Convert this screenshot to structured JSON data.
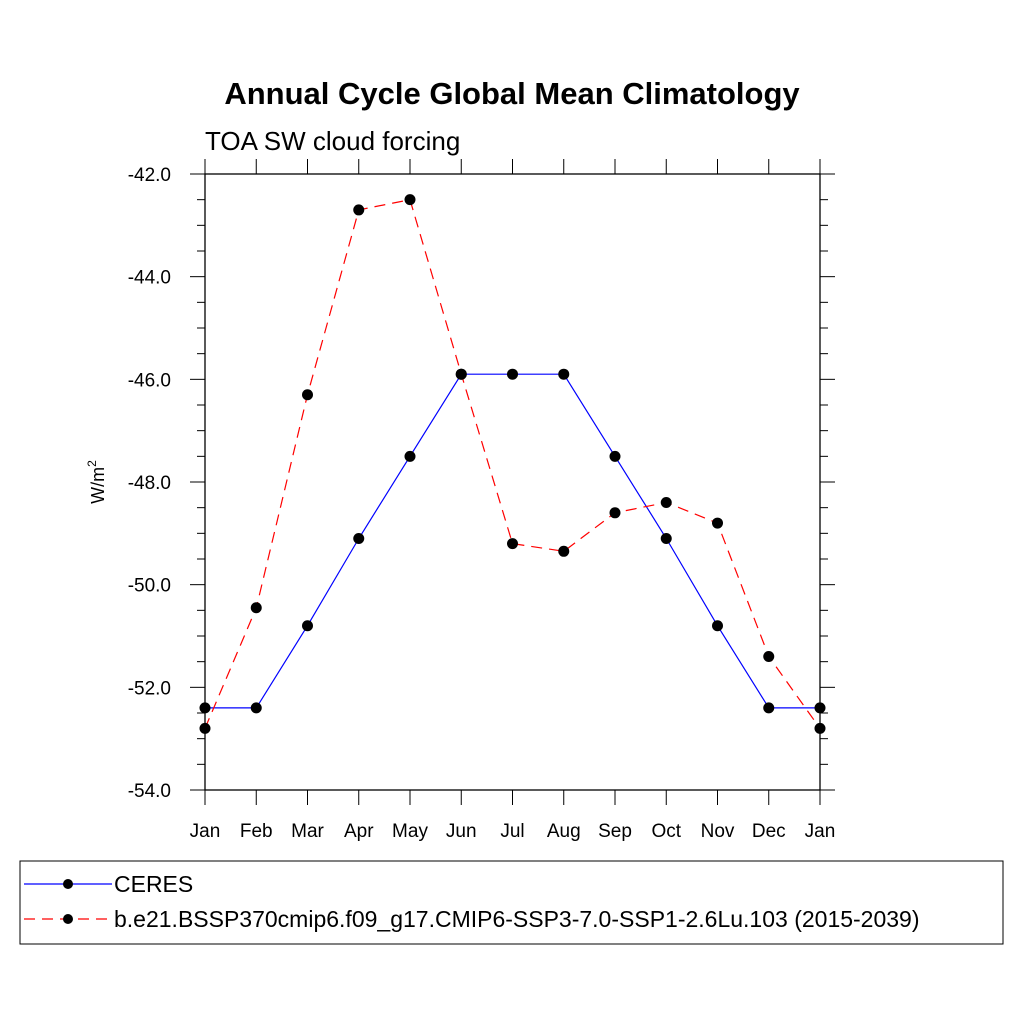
{
  "chart_data": {
    "type": "line",
    "title": "Annual Cycle Global Mean Climatology",
    "subtitle": "TOA SW cloud forcing",
    "ylabel": "W/m",
    "ylabel_superscript": "2",
    "xlabel": "",
    "ylim": [
      -54.0,
      -42.0
    ],
    "y_ticks": [
      -54.0,
      -52.0,
      -50.0,
      -48.0,
      -46.0,
      -44.0,
      -42.0
    ],
    "y_tick_labels": [
      "-54.0",
      "-52.0",
      "-50.0",
      "-48.0",
      "-46.0",
      "-44.0",
      "-42.0"
    ],
    "categories": [
      "Jan",
      "Feb",
      "Mar",
      "Apr",
      "May",
      "Jun",
      "Jul",
      "Aug",
      "Sep",
      "Oct",
      "Nov",
      "Dec",
      "Jan"
    ],
    "grid": false,
    "legend_position": "bottom",
    "series": [
      {
        "name": "CERES",
        "color": "#0000ff",
        "line_style": "solid",
        "marker": "filled-circle",
        "values": [
          -52.4,
          -52.4,
          -50.8,
          -49.1,
          -47.5,
          -45.9,
          -45.9,
          -45.9,
          -47.5,
          -49.1,
          -50.8,
          -52.4,
          -52.4
        ]
      },
      {
        "name": "b.e21.BSSP370cmip6.f09_g17.CMIP6-SSP3-7.0-SSP1-2.6Lu.103 (2015-2039)",
        "color": "#ff0000",
        "line_style": "dashed",
        "marker": "filled-circle",
        "values": [
          -52.8,
          -50.45,
          -46.3,
          -42.7,
          -42.5,
          -45.9,
          -49.2,
          -49.35,
          -48.6,
          -48.4,
          -48.8,
          -51.4,
          -52.8
        ]
      }
    ]
  }
}
